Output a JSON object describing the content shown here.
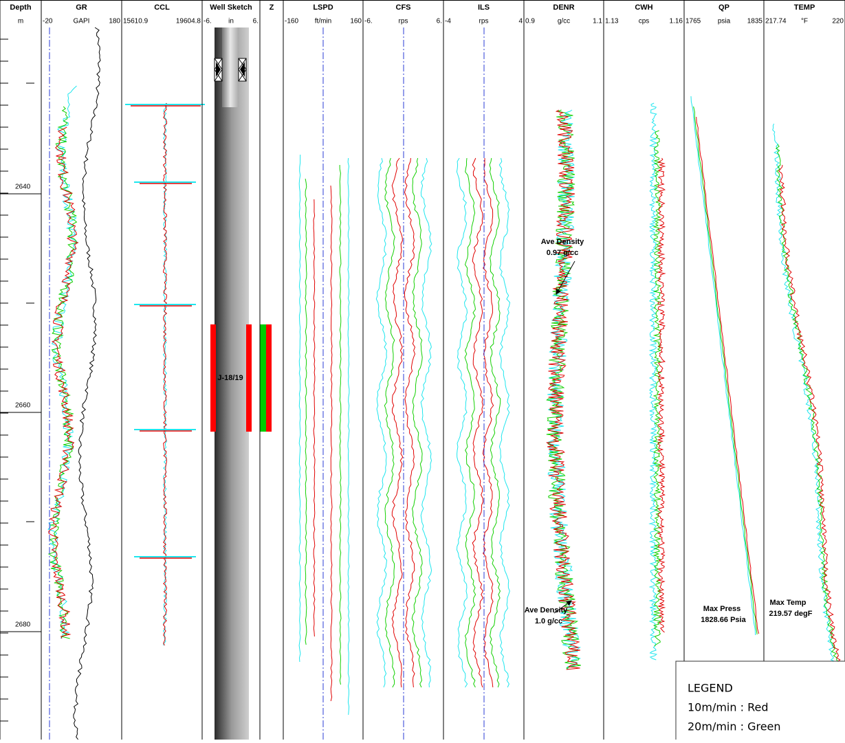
{
  "tracks": [
    {
      "name": "Depth",
      "unit": "m"
    },
    {
      "name": "GR",
      "min": "-20",
      "unit": "GAPI",
      "max": "180"
    },
    {
      "name": "CCL",
      "min": "15610.9",
      "max": "19604.8"
    },
    {
      "name": "Well Sketch",
      "min": "-6.",
      "unit": "in",
      "max": "6."
    },
    {
      "name": "Z"
    },
    {
      "name": "LSPD",
      "min": "-160",
      "unit": "ft/min",
      "max": "160"
    },
    {
      "name": "CFS",
      "min": "-6.",
      "unit": "rps",
      "max": "6."
    },
    {
      "name": "ILS",
      "min": "-4",
      "unit": "rps",
      "max": "4"
    },
    {
      "name": "DENR",
      "min": "0.9",
      "unit": "g/cc",
      "max": "1.1"
    },
    {
      "name": "CWH",
      "min": "1.13",
      "unit": "cps",
      "max": "1.16"
    },
    {
      "name": "QP",
      "min": "1765",
      "unit": "psia",
      "max": "1835"
    },
    {
      "name": "TEMP",
      "min": "217.74",
      "unit": "°F",
      "max": "220"
    }
  ],
  "depth_labels": [
    "2640",
    "2660",
    "2680"
  ],
  "zone_label": "J-18/19",
  "annotations": [
    {
      "lines": [
        "Ave Density",
        "0.97 g/cc"
      ]
    },
    {
      "lines": [
        "Ave Density",
        "1.0 g/cc"
      ]
    },
    {
      "lines": [
        "Max Press",
        "1828.66 Psia"
      ]
    },
    {
      "lines": [
        "Max Temp",
        "219.57 degF"
      ]
    }
  ],
  "legend": {
    "title": "LEGEND",
    "items": [
      "10m/min : Red",
      "20m/min : Green"
    ]
  }
}
